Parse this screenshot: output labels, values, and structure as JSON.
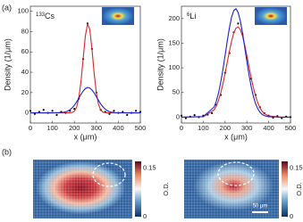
{
  "chart_data": [
    {
      "type": "line",
      "panel_label": "(a)",
      "label_mass": "133",
      "label_element": "Cs",
      "y_label": "Density (1/μm)",
      "x_label": "x (μm)",
      "xlim": [
        0,
        500
      ],
      "xticks": [
        0,
        100,
        200,
        300,
        400,
        500
      ],
      "ylim": [
        -10,
        105
      ],
      "yticks": [
        0,
        20,
        40,
        60,
        80,
        100
      ],
      "series": [
        {
          "style": "markers",
          "color": "#000000",
          "x": [
            0,
            20,
            40,
            60,
            80,
            100,
            120,
            140,
            160,
            180,
            200,
            220,
            240,
            260,
            280,
            300,
            320,
            340,
            360,
            380,
            400,
            420,
            440,
            460,
            480,
            500
          ],
          "values": [
            2,
            -1,
            1,
            3,
            0,
            2,
            -2,
            1,
            0,
            2,
            4,
            14,
            53,
            88,
            63,
            20,
            3,
            1,
            -1,
            2,
            0,
            1,
            -2,
            0,
            2,
            1
          ]
        },
        {
          "style": "line",
          "color": "#d62728",
          "x": [
            0,
            100,
            150,
            160,
            170,
            180,
            190,
            200,
            210,
            220,
            230,
            240,
            250,
            260,
            270,
            280,
            290,
            300,
            310,
            320,
            330,
            340,
            350,
            360,
            370,
            380,
            400,
            450,
            500
          ],
          "values": [
            0,
            0,
            0,
            0,
            0,
            0.1,
            0.4,
            1.7,
            5.4,
            14.3,
            30.5,
            53.4,
            75.9,
            87.6,
            82.4,
            63,
            39.1,
            19.8,
            8.1,
            2.7,
            0.7,
            0.2,
            0,
            0,
            0,
            0,
            0,
            0,
            0
          ]
        },
        {
          "style": "line",
          "color": "#1f1fcc",
          "x": [
            0,
            100,
            150,
            160,
            170,
            180,
            190,
            200,
            210,
            220,
            230,
            240,
            250,
            260,
            270,
            280,
            290,
            300,
            310,
            320,
            330,
            340,
            350,
            360,
            370,
            380,
            400,
            450,
            500
          ],
          "values": [
            0,
            0,
            0.5,
            1,
            1.8,
            3.1,
            5,
            7.5,
            10.7,
            14.4,
            18.2,
            21.5,
            23.9,
            25,
            24.5,
            22.6,
            19.6,
            15.9,
            12.2,
            8.7,
            5.9,
            3.7,
            2.2,
            1.2,
            0.6,
            0.3,
            0.1,
            0,
            0
          ]
        }
      ]
    },
    {
      "type": "line",
      "label_mass": "6",
      "label_element": "Li",
      "y_label": "Density (1/μm)",
      "x_label": "x (μm)",
      "xlim": [
        0,
        500
      ],
      "xticks": [
        0,
        100,
        200,
        300,
        400,
        500
      ],
      "ylim": [
        -12,
        225
      ],
      "yticks": [
        0,
        50,
        100,
        150,
        200
      ],
      "series": [
        {
          "style": "markers",
          "color": "#000000",
          "x": [
            0,
            20,
            40,
            60,
            80,
            100,
            120,
            140,
            160,
            180,
            200,
            220,
            240,
            260,
            280,
            300,
            320,
            340,
            360,
            380,
            400,
            420,
            440,
            460,
            480,
            500
          ],
          "values": [
            3,
            -2,
            1,
            4,
            0,
            3,
            5,
            8,
            25,
            45,
            90,
            130,
            172,
            190,
            168,
            120,
            78,
            45,
            20,
            8,
            3,
            -1,
            2,
            -2,
            1,
            0
          ]
        },
        {
          "style": "line",
          "color": "#d62728",
          "x": [
            0,
            100,
            150,
            160,
            170,
            180,
            190,
            200,
            210,
            220,
            230,
            240,
            250,
            260,
            270,
            280,
            290,
            300,
            310,
            320,
            330,
            340,
            350,
            360,
            370,
            380,
            400,
            450,
            500
          ],
          "values": [
            0,
            0.8,
            14.6,
            22.8,
            34,
            48.9,
            67.3,
            88.3,
            111,
            134,
            154,
            171,
            180.5,
            183,
            177.4,
            164.8,
            146.6,
            124.8,
            101.6,
            79.3,
            59.4,
            42.5,
            29.1,
            19.1,
            12,
            7.2,
            2.3,
            0.1,
            0
          ]
        },
        {
          "style": "line",
          "color": "#1f1fcc",
          "x": [
            0,
            100,
            150,
            160,
            170,
            180,
            190,
            200,
            210,
            220,
            230,
            240,
            250,
            260,
            270,
            280,
            290,
            300,
            310,
            320,
            330,
            340,
            350,
            360,
            370,
            380,
            400,
            450,
            500
          ],
          "values": [
            0,
            1,
            20.6,
            32.5,
            49.1,
            70.4,
            96.2,
            124.6,
            154.2,
            181.4,
            203.1,
            216.6,
            219.9,
            212.3,
            195.2,
            170.9,
            142.4,
            112.8,
            85.4,
            61.2,
            41.9,
            27.2,
            16.9,
            9.9,
            5.6,
            3,
            0.7,
            0,
            0
          ]
        }
      ]
    },
    {
      "type": "heatmap",
      "panel_label": "(b)",
      "colorbar_label": "O.D.",
      "clim": [
        0,
        0.17
      ],
      "cticks": [
        0,
        0.15
      ]
    },
    {
      "type": "heatmap",
      "colorbar_label": "O.D.",
      "clim": [
        0,
        0.17
      ],
      "cticks": [
        0,
        0.15
      ],
      "scale_bar_label": "50 μm"
    }
  ]
}
